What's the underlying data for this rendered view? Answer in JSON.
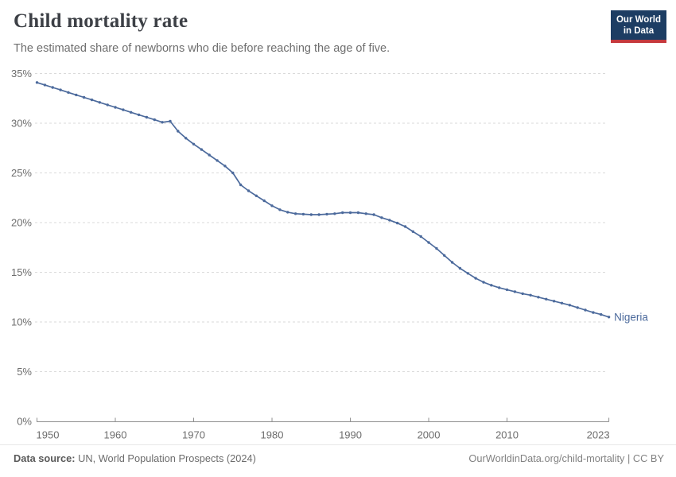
{
  "header": {
    "title": "Child mortality rate",
    "subtitle": "The estimated share of newborns who die before reaching the age of five."
  },
  "logo": {
    "line1": "Our World",
    "line2": "in Data",
    "bg_color": "#1d3d63",
    "accent_color": "#c5393d"
  },
  "chart_data": {
    "type": "line",
    "title": "Child mortality rate",
    "xlabel": "",
    "ylabel": "",
    "unit": "%",
    "xlim": [
      1950,
      2023
    ],
    "ylim": [
      0,
      35
    ],
    "grid": "horizontal dashed",
    "legend_position": "end-of-line label",
    "y_ticks": [
      0,
      5,
      10,
      15,
      20,
      25,
      30,
      35
    ],
    "y_tick_labels": [
      "0%",
      "5%",
      "10%",
      "15%",
      "20%",
      "25%",
      "30%",
      "35%"
    ],
    "x_ticks": [
      1950,
      1960,
      1970,
      1980,
      1990,
      2000,
      2010,
      2023
    ],
    "x_tick_labels": [
      "1950",
      "1960",
      "1970",
      "1980",
      "1990",
      "2000",
      "2010",
      "2023"
    ],
    "x": [
      1950,
      1951,
      1952,
      1953,
      1954,
      1955,
      1956,
      1957,
      1958,
      1959,
      1960,
      1961,
      1962,
      1963,
      1964,
      1965,
      1966,
      1967,
      1968,
      1969,
      1970,
      1971,
      1972,
      1973,
      1974,
      1975,
      1976,
      1977,
      1978,
      1979,
      1980,
      1981,
      1982,
      1983,
      1984,
      1985,
      1986,
      1987,
      1988,
      1989,
      1990,
      1991,
      1992,
      1993,
      1994,
      1995,
      1996,
      1997,
      1998,
      1999,
      2000,
      2001,
      2002,
      2003,
      2004,
      2005,
      2006,
      2007,
      2008,
      2009,
      2010,
      2011,
      2012,
      2013,
      2014,
      2015,
      2016,
      2017,
      2018,
      2019,
      2020,
      2021,
      2022,
      2023
    ],
    "series": [
      {
        "name": "Nigeria",
        "color": "#4c6a9c",
        "values": [
          34.1,
          33.85,
          33.6,
          33.35,
          33.1,
          32.85,
          32.6,
          32.35,
          32.1,
          31.85,
          31.6,
          31.35,
          31.1,
          30.85,
          30.6,
          30.35,
          30.1,
          30.2,
          29.2,
          28.5,
          27.9,
          27.35,
          26.8,
          26.25,
          25.7,
          25.0,
          23.8,
          23.2,
          22.7,
          22.2,
          21.7,
          21.3,
          21.05,
          20.9,
          20.85,
          20.8,
          20.8,
          20.85,
          20.9,
          21.0,
          21.0,
          21.0,
          20.9,
          20.8,
          20.5,
          20.25,
          19.95,
          19.6,
          19.1,
          18.6,
          18.0,
          17.4,
          16.7,
          16.0,
          15.4,
          14.9,
          14.4,
          14.0,
          13.7,
          13.45,
          13.25,
          13.05,
          12.85,
          12.7,
          12.5,
          12.3,
          12.1,
          11.9,
          11.7,
          11.45,
          11.2,
          10.95,
          10.75,
          10.5
        ]
      }
    ]
  },
  "footer": {
    "source_label": "Data source:",
    "source_value": "UN, World Population Prospects (2024)",
    "link": "OurWorldinData.org/child-mortality | CC BY"
  },
  "colors": {
    "line": "#4c6a9c",
    "grid": "#dadada",
    "axis": "#8f8f8f",
    "tick_text": "#6d6d6d",
    "title_text": "#3d4046",
    "subtitle_text": "#6e6e6e"
  }
}
